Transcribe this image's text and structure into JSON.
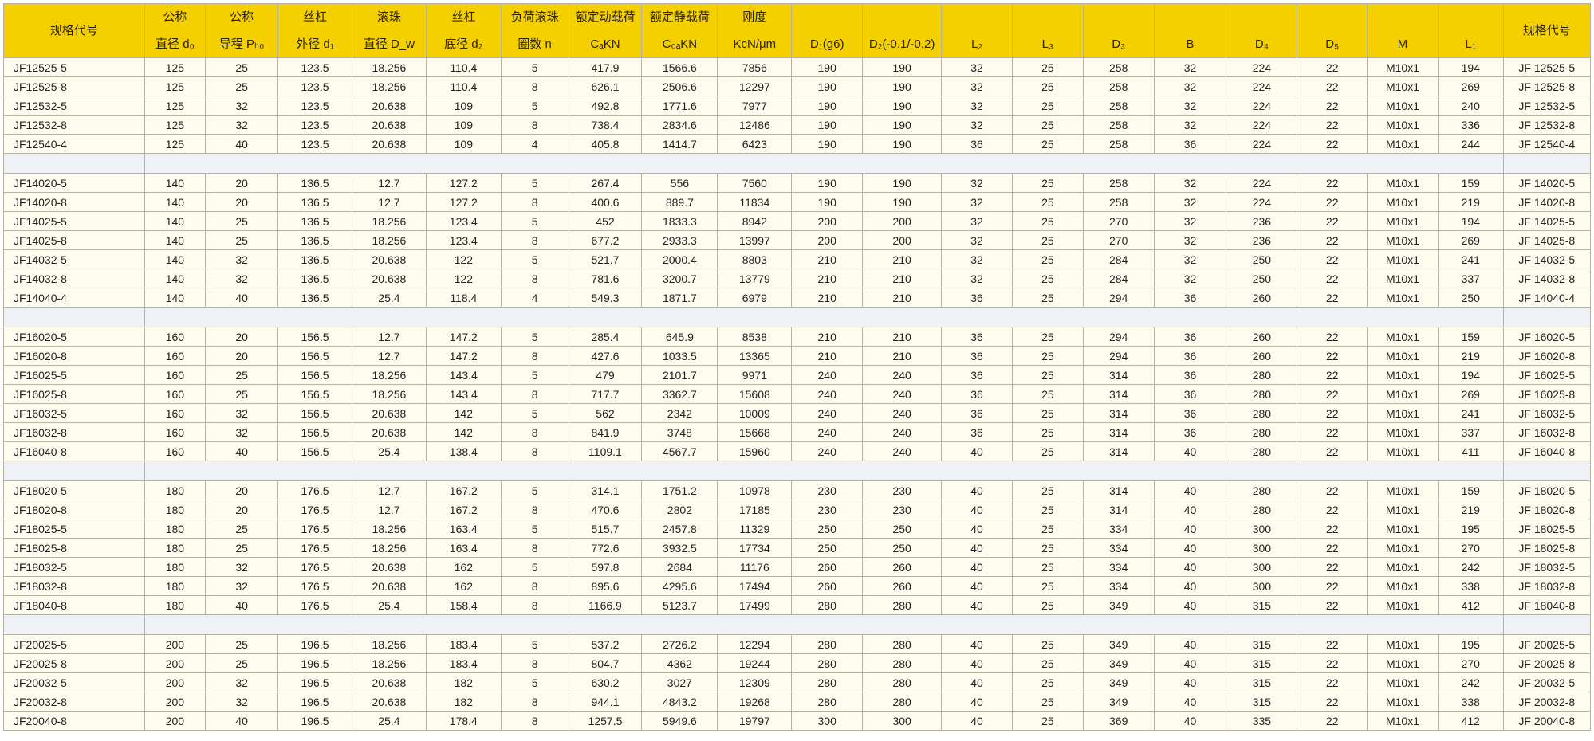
{
  "colors": {
    "header_bg": "#f5d000",
    "row_bg": "#fefcee",
    "separator_bg": "#eef2f6",
    "border": "#b8b2a0"
  },
  "headers": [
    {
      "l1": "规格代号",
      "l2": ""
    },
    {
      "l1": "公称",
      "l2": "直径 d₀"
    },
    {
      "l1": "公称",
      "l2": "导程 Pₕ₀"
    },
    {
      "l1": "丝杠",
      "l2": "外径 d₁"
    },
    {
      "l1": "滚珠",
      "l2": "直径 D_w"
    },
    {
      "l1": "丝杠",
      "l2": "底径 d₂"
    },
    {
      "l1": "负荷滚珠",
      "l2": "圈数 n"
    },
    {
      "l1": "额定动载荷",
      "l2": "CₐKN"
    },
    {
      "l1": "额定静载荷",
      "l2": "C₀ₐKN"
    },
    {
      "l1": "刚度",
      "l2": "KcN/μm"
    },
    {
      "l1": "",
      "l2": "D₁(g6)"
    },
    {
      "l1": "",
      "l2": "D₂(-0.1/-0.2)"
    },
    {
      "l1": "",
      "l2": "L₂"
    },
    {
      "l1": "",
      "l2": "L₃"
    },
    {
      "l1": "",
      "l2": "D₃"
    },
    {
      "l1": "",
      "l2": "B"
    },
    {
      "l1": "",
      "l2": "D₄"
    },
    {
      "l1": "",
      "l2": "D₅"
    },
    {
      "l1": "",
      "l2": "M"
    },
    {
      "l1": "",
      "l2": "L₁"
    },
    {
      "l1": "规格代号",
      "l2": ""
    }
  ],
  "groups": [
    {
      "rows": [
        [
          "JF12525-5",
          "125",
          "25",
          "123.5",
          "18.256",
          "110.4",
          "5",
          "417.9",
          "1566.6",
          "7856",
          "190",
          "190",
          "32",
          "25",
          "258",
          "32",
          "224",
          "22",
          "M10x1",
          "194",
          "JF 12525-5"
        ],
        [
          "JF12525-8",
          "125",
          "25",
          "123.5",
          "18.256",
          "110.4",
          "8",
          "626.1",
          "2506.6",
          "12297",
          "190",
          "190",
          "32",
          "25",
          "258",
          "32",
          "224",
          "22",
          "M10x1",
          "269",
          "JF 12525-8"
        ],
        [
          "JF12532-5",
          "125",
          "32",
          "123.5",
          "20.638",
          "109",
          "5",
          "492.8",
          "1771.6",
          "7977",
          "190",
          "190",
          "32",
          "25",
          "258",
          "32",
          "224",
          "22",
          "M10x1",
          "240",
          "JF 12532-5"
        ],
        [
          "JF12532-8",
          "125",
          "32",
          "123.5",
          "20.638",
          "109",
          "8",
          "738.4",
          "2834.6",
          "12486",
          "190",
          "190",
          "32",
          "25",
          "258",
          "32",
          "224",
          "22",
          "M10x1",
          "336",
          "JF 12532-8"
        ],
        [
          "JF12540-4",
          "125",
          "40",
          "123.5",
          "20.638",
          "109",
          "4",
          "405.8",
          "1414.7",
          "6423",
          "190",
          "190",
          "36",
          "25",
          "258",
          "36",
          "224",
          "22",
          "M10x1",
          "244",
          "JF 12540-4"
        ]
      ]
    },
    {
      "rows": [
        [
          "JF14020-5",
          "140",
          "20",
          "136.5",
          "12.7",
          "127.2",
          "5",
          "267.4",
          "556",
          "7560",
          "190",
          "190",
          "32",
          "25",
          "258",
          "32",
          "224",
          "22",
          "M10x1",
          "159",
          "JF 14020-5"
        ],
        [
          "JF14020-8",
          "140",
          "20",
          "136.5",
          "12.7",
          "127.2",
          "8",
          "400.6",
          "889.7",
          "11834",
          "190",
          "190",
          "32",
          "25",
          "258",
          "32",
          "224",
          "22",
          "M10x1",
          "219",
          "JF 14020-8"
        ],
        [
          "JF14025-5",
          "140",
          "25",
          "136.5",
          "18.256",
          "123.4",
          "5",
          "452",
          "1833.3",
          "8942",
          "200",
          "200",
          "32",
          "25",
          "270",
          "32",
          "236",
          "22",
          "M10x1",
          "194",
          "JF 14025-5"
        ],
        [
          "JF14025-8",
          "140",
          "25",
          "136.5",
          "18.256",
          "123.4",
          "8",
          "677.2",
          "2933.3",
          "13997",
          "200",
          "200",
          "32",
          "25",
          "270",
          "32",
          "236",
          "22",
          "M10x1",
          "269",
          "JF 14025-8"
        ],
        [
          "JF14032-5",
          "140",
          "32",
          "136.5",
          "20.638",
          "122",
          "5",
          "521.7",
          "2000.4",
          "8803",
          "210",
          "210",
          "32",
          "25",
          "284",
          "32",
          "250",
          "22",
          "M10x1",
          "241",
          "JF 14032-5"
        ],
        [
          "JF14032-8",
          "140",
          "32",
          "136.5",
          "20.638",
          "122",
          "8",
          "781.6",
          "3200.7",
          "13779",
          "210",
          "210",
          "32",
          "25",
          "284",
          "32",
          "250",
          "22",
          "M10x1",
          "337",
          "JF 14032-8"
        ],
        [
          "JF14040-4",
          "140",
          "40",
          "136.5",
          "25.4",
          "118.4",
          "4",
          "549.3",
          "1871.7",
          "6979",
          "210",
          "210",
          "36",
          "25",
          "294",
          "36",
          "260",
          "22",
          "M10x1",
          "250",
          "JF 14040-4"
        ]
      ]
    },
    {
      "rows": [
        [
          "JF16020-5",
          "160",
          "20",
          "156.5",
          "12.7",
          "147.2",
          "5",
          "285.4",
          "645.9",
          "8538",
          "210",
          "210",
          "36",
          "25",
          "294",
          "36",
          "260",
          "22",
          "M10x1",
          "159",
          "JF 16020-5"
        ],
        [
          "JF16020-8",
          "160",
          "20",
          "156.5",
          "12.7",
          "147.2",
          "8",
          "427.6",
          "1033.5",
          "13365",
          "210",
          "210",
          "36",
          "25",
          "294",
          "36",
          "260",
          "22",
          "M10x1",
          "219",
          "JF 16020-8"
        ],
        [
          "JF16025-5",
          "160",
          "25",
          "156.5",
          "18.256",
          "143.4",
          "5",
          "479",
          "2101.7",
          "9971",
          "240",
          "240",
          "36",
          "25",
          "314",
          "36",
          "280",
          "22",
          "M10x1",
          "194",
          "JF 16025-5"
        ],
        [
          "JF16025-8",
          "160",
          "25",
          "156.5",
          "18.256",
          "143.4",
          "8",
          "717.7",
          "3362.7",
          "15608",
          "240",
          "240",
          "36",
          "25",
          "314",
          "36",
          "280",
          "22",
          "M10x1",
          "269",
          "JF 16025-8"
        ],
        [
          "JF16032-5",
          "160",
          "32",
          "156.5",
          "20.638",
          "142",
          "5",
          "562",
          "2342",
          "10009",
          "240",
          "240",
          "36",
          "25",
          "314",
          "36",
          "280",
          "22",
          "M10x1",
          "241",
          "JF 16032-5"
        ],
        [
          "JF16032-8",
          "160",
          "32",
          "156.5",
          "20.638",
          "142",
          "8",
          "841.9",
          "3748",
          "15668",
          "240",
          "240",
          "36",
          "25",
          "314",
          "36",
          "280",
          "22",
          "M10x1",
          "337",
          "JF 16032-8"
        ],
        [
          "JF16040-8",
          "160",
          "40",
          "156.5",
          "25.4",
          "138.4",
          "8",
          "1109.1",
          "4567.7",
          "15960",
          "240",
          "240",
          "40",
          "25",
          "314",
          "40",
          "280",
          "22",
          "M10x1",
          "411",
          "JF 16040-8"
        ]
      ]
    },
    {
      "rows": [
        [
          "JF18020-5",
          "180",
          "20",
          "176.5",
          "12.7",
          "167.2",
          "5",
          "314.1",
          "1751.2",
          "10978",
          "230",
          "230",
          "40",
          "25",
          "314",
          "40",
          "280",
          "22",
          "M10x1",
          "159",
          "JF 18020-5"
        ],
        [
          "JF18020-8",
          "180",
          "20",
          "176.5",
          "12.7",
          "167.2",
          "8",
          "470.6",
          "2802",
          "17185",
          "230",
          "230",
          "40",
          "25",
          "314",
          "40",
          "280",
          "22",
          "M10x1",
          "219",
          "JF 18020-8"
        ],
        [
          "JF18025-5",
          "180",
          "25",
          "176.5",
          "18.256",
          "163.4",
          "5",
          "515.7",
          "2457.8",
          "11329",
          "250",
          "250",
          "40",
          "25",
          "334",
          "40",
          "300",
          "22",
          "M10x1",
          "195",
          "JF 18025-5"
        ],
        [
          "JF18025-8",
          "180",
          "25",
          "176.5",
          "18.256",
          "163.4",
          "8",
          "772.6",
          "3932.5",
          "17734",
          "250",
          "250",
          "40",
          "25",
          "334",
          "40",
          "300",
          "22",
          "M10x1",
          "270",
          "JF 18025-8"
        ],
        [
          "JF18032-5",
          "180",
          "32",
          "176.5",
          "20.638",
          "162",
          "5",
          "597.8",
          "2684",
          "11176",
          "260",
          "260",
          "40",
          "25",
          "334",
          "40",
          "300",
          "22",
          "M10x1",
          "242",
          "JF 18032-5"
        ],
        [
          "JF18032-8",
          "180",
          "32",
          "176.5",
          "20.638",
          "162",
          "8",
          "895.6",
          "4295.6",
          "17494",
          "260",
          "260",
          "40",
          "25",
          "334",
          "40",
          "300",
          "22",
          "M10x1",
          "338",
          "JF 18032-8"
        ],
        [
          "JF18040-8",
          "180",
          "40",
          "176.5",
          "25.4",
          "158.4",
          "8",
          "1166.9",
          "5123.7",
          "17499",
          "280",
          "280",
          "40",
          "25",
          "349",
          "40",
          "315",
          "22",
          "M10x1",
          "412",
          "JF 18040-8"
        ]
      ]
    },
    {
      "rows": [
        [
          "JF20025-5",
          "200",
          "25",
          "196.5",
          "18.256",
          "183.4",
          "5",
          "537.2",
          "2726.2",
          "12294",
          "280",
          "280",
          "40",
          "25",
          "349",
          "40",
          "315",
          "22",
          "M10x1",
          "195",
          "JF 20025-5"
        ],
        [
          "JF20025-8",
          "200",
          "25",
          "196.5",
          "18.256",
          "183.4",
          "8",
          "804.7",
          "4362",
          "19244",
          "280",
          "280",
          "40",
          "25",
          "349",
          "40",
          "315",
          "22",
          "M10x1",
          "270",
          "JF 20025-8"
        ],
        [
          "JF20032-5",
          "200",
          "32",
          "196.5",
          "20.638",
          "182",
          "5",
          "630.2",
          "3027",
          "12309",
          "280",
          "280",
          "40",
          "25",
          "349",
          "40",
          "315",
          "22",
          "M10x1",
          "242",
          "JF 20032-5"
        ],
        [
          "JF20032-8",
          "200",
          "32",
          "196.5",
          "20.638",
          "182",
          "8",
          "944.1",
          "4843.2",
          "19268",
          "280",
          "280",
          "40",
          "25",
          "349",
          "40",
          "315",
          "22",
          "M10x1",
          "338",
          "JF 20032-8"
        ],
        [
          "JF20040-8",
          "200",
          "40",
          "196.5",
          "25.4",
          "178.4",
          "8",
          "1257.5",
          "5949.6",
          "19797",
          "300",
          "300",
          "40",
          "25",
          "369",
          "40",
          "335",
          "22",
          "M10x1",
          "412",
          "JF 20040-8"
        ]
      ]
    }
  ]
}
